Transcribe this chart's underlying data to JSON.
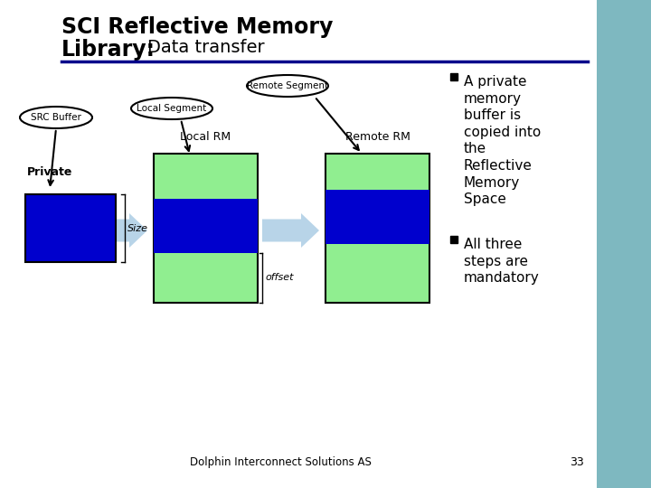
{
  "bg_color": "#ffffff",
  "right_panel_color": "#7eb8c0",
  "divider_color": "#00008b",
  "green_light": "#90EE90",
  "blue_dark": "#0000CD",
  "blue_light": "#b8d4e8",
  "bullet1": "A private\nmemory\nbuffer is\ncopied into\nthe\nReflective\nMemory\nSpace",
  "bullet2": "All three\nsteps are\nmandatory",
  "footer": "Dolphin Interconnect Solutions AS",
  "page_num": "33",
  "src_buffer_label": "SRC Buffer",
  "local_segment_label": "Local Segment",
  "remote_segment_label": "Remote Segment",
  "private_label": "Private",
  "local_rm_label": "Local RM",
  "remote_rm_label": "Remote RM",
  "size_label": "Size",
  "offset_label": "offset"
}
